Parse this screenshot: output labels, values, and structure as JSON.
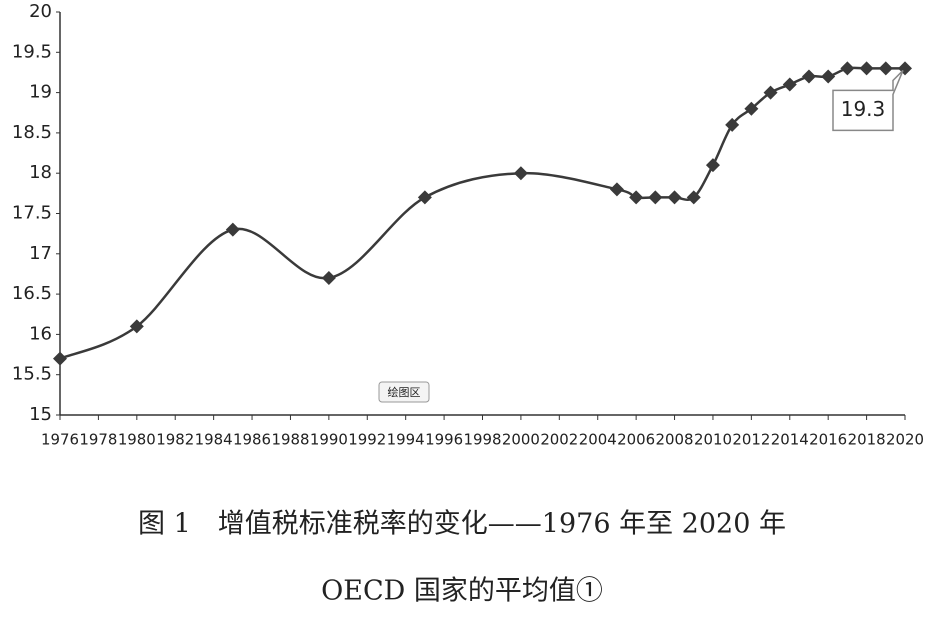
{
  "chart_data": {
    "type": "line",
    "x": [
      1976,
      1980,
      1985,
      1990,
      1995,
      2000,
      2005,
      2006,
      2007,
      2008,
      2009,
      2010,
      2011,
      2012,
      2013,
      2014,
      2015,
      2016,
      2017,
      2018,
      2019,
      2020
    ],
    "values": [
      15.7,
      16.1,
      17.3,
      16.7,
      17.7,
      18,
      17.8,
      17.7,
      17.7,
      17.7,
      17.7,
      18.1,
      18.6,
      18.8,
      19.0,
      19.1,
      19.2,
      19.2,
      19.3,
      19.3,
      19.3,
      19.3
    ],
    "value_labels": [
      null,
      null,
      null,
      null,
      null,
      null,
      null,
      null,
      null,
      null,
      null,
      null,
      null,
      null,
      null,
      null,
      null,
      null,
      null,
      null,
      null,
      "19.3"
    ],
    "color": "#3a3a3a",
    "xlim": [
      1976,
      2020
    ],
    "xticks": [
      1976,
      1978,
      1980,
      1982,
      1984,
      1986,
      1988,
      1990,
      1992,
      1994,
      1996,
      1998,
      2000,
      2002,
      2004,
      2006,
      2008,
      2010,
      2012,
      2014,
      2016,
      2018,
      2020
    ],
    "ylim": [
      15,
      20
    ],
    "yticks": [
      15,
      15.5,
      16,
      16.5,
      17,
      17.5,
      18,
      18.5,
      19,
      19.5,
      20
    ],
    "smooth": true,
    "plot_area_label": "绘图区",
    "caption": [
      "图 1　增值税标准税率的变化——1976 年至 2020 年",
      "OECD 国家的平均值①"
    ]
  }
}
